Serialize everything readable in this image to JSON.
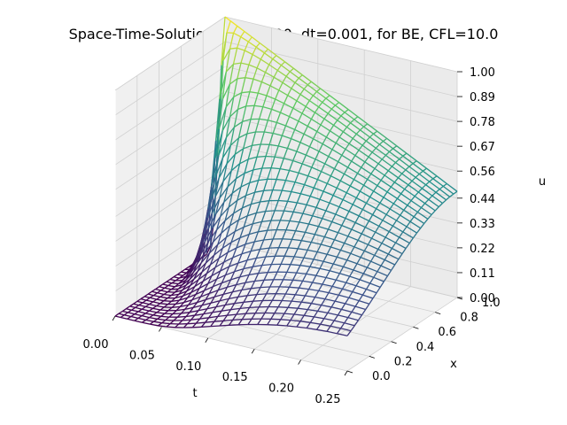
{
  "chart_data": {
    "type": "surface-wireframe",
    "title": "Space-Time-Solution node=100, dt=0.001, for BE, CFL=10.0",
    "xlabel": "t",
    "ylabel": "x",
    "zlabel": "u",
    "t_range": [
      0.0,
      0.25
    ],
    "x_range": [
      0.0,
      1.0
    ],
    "u_range": [
      0.0,
      1.0
    ],
    "t_ticks": [
      "0.00",
      "0.05",
      "0.10",
      "0.15",
      "0.20",
      "0.25"
    ],
    "x_ticks": [
      "0.0",
      "0.2",
      "0.4",
      "0.6",
      "0.8",
      "1.0"
    ],
    "u_ticks": [
      "0.00",
      "0.11",
      "0.22",
      "0.33",
      "0.44",
      "0.56",
      "0.67",
      "0.78",
      "0.89",
      "1.00"
    ],
    "colormap": "viridis",
    "colormap_stops": [
      "#440154",
      "#3b528b",
      "#21918c",
      "#5ec962",
      "#fde725"
    ],
    "grid": true,
    "surface": {
      "initial_peak": 1.0,
      "final_value_at_x1": 0.47,
      "description_points": [
        {
          "t": 0.0,
          "x": 1.0,
          "u": 1.0
        },
        {
          "t": 0.25,
          "x": 1.0,
          "u": 0.47
        },
        {
          "t": 0.25,
          "x": 0.0,
          "u": 0.0
        }
      ]
    }
  }
}
